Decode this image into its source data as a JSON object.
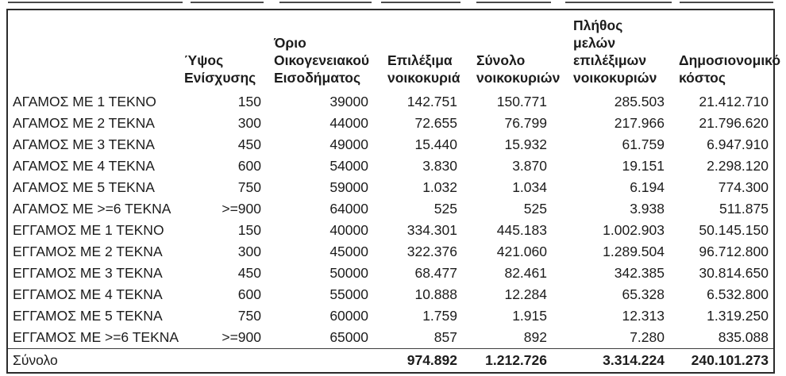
{
  "colors": {
    "background": "#ffffff",
    "table_border": "#2b2b2b",
    "text": "#1c1c1c",
    "total_rule": "#3c3c3c"
  },
  "table": {
    "columns": [
      {
        "id": "category",
        "lines": []
      },
      {
        "id": "aid-amount",
        "lines": [
          "Ύψος",
          "Ενίσχυσης"
        ]
      },
      {
        "id": "family-income-limit",
        "lines": [
          "Όριο",
          "Οικογενειακού",
          "Εισοδήματος"
        ]
      },
      {
        "id": "eligible-households",
        "lines": [
          "Επιλέξιμα",
          "νοικοκυριά"
        ]
      },
      {
        "id": "total-households",
        "lines": [
          "Σύνολο",
          "νοικοκυριών"
        ]
      },
      {
        "id": "members-of-eligible-households",
        "lines": [
          "Πλήθος",
          "μελών",
          "επιλέξιμων",
          "νοικοκυριών"
        ]
      },
      {
        "id": "fiscal-cost",
        "lines": [
          "Δημοσιονομικό",
          "κόστος"
        ]
      }
    ],
    "rows": [
      [
        "ΑΓΑΜΟΣ ΜΕ 1 ΤΕΚΝΟ",
        "150",
        "39000",
        "142.751",
        "150.771",
        "285.503",
        "21.412.710"
      ],
      [
        "ΑΓΑΜΟΣ ΜΕ 2 ΤΕΚΝΑ",
        "300",
        "44000",
        "72.655",
        "76.799",
        "217.966",
        "21.796.620"
      ],
      [
        "ΑΓΑΜΟΣ ΜΕ 3 ΤΕΚΝΑ",
        "450",
        "49000",
        "15.440",
        "15.932",
        "61.759",
        "6.947.910"
      ],
      [
        "ΑΓΑΜΟΣ ΜΕ 4 ΤΕΚΝΑ",
        "600",
        "54000",
        "3.830",
        "3.870",
        "19.151",
        "2.298.120"
      ],
      [
        "ΑΓΑΜΟΣ ΜΕ 5 ΤΕΚΝΑ",
        "750",
        "59000",
        "1.032",
        "1.034",
        "6.194",
        "774.300"
      ],
      [
        "ΑΓΑΜΟΣ ΜΕ >=6 ΤΕΚΝΑ",
        ">=900",
        "64000",
        "525",
        "525",
        "3.938",
        "511.875"
      ],
      [
        "ΕΓΓΑΜΟΣ ΜΕ 1 ΤΕΚΝΟ",
        "150",
        "40000",
        "334.301",
        "445.183",
        "1.002.903",
        "50.145.150"
      ],
      [
        "ΕΓΓΑΜΟΣ ΜΕ 2 ΤΕΚΝΑ",
        "300",
        "45000",
        "322.376",
        "421.060",
        "1.289.504",
        "96.712.800"
      ],
      [
        "ΕΓΓΑΜΟΣ ΜΕ 3 ΤΕΚΝΑ",
        "450",
        "50000",
        "68.477",
        "82.461",
        "342.385",
        "30.814.650"
      ],
      [
        "ΕΓΓΑΜΟΣ ΜΕ 4 ΤΕΚΝΑ",
        "600",
        "55000",
        "10.888",
        "12.284",
        "65.328",
        "6.532.800"
      ],
      [
        "ΕΓΓΑΜΟΣ ΜΕ 5 ΤΕΚΝΑ",
        "750",
        "60000",
        "1.759",
        "1.915",
        "12.313",
        "1.319.250"
      ],
      [
        "ΕΓΓΑΜΟΣ ΜΕ >=6 ΤΕΚΝΑ",
        ">=900",
        "65000",
        "857",
        "892",
        "7.280",
        "835.088"
      ]
    ],
    "total_row": [
      "Σύνολο",
      "",
      "",
      "974.892",
      "1.212.726",
      "3.314.224",
      "240.101.273"
    ]
  }
}
